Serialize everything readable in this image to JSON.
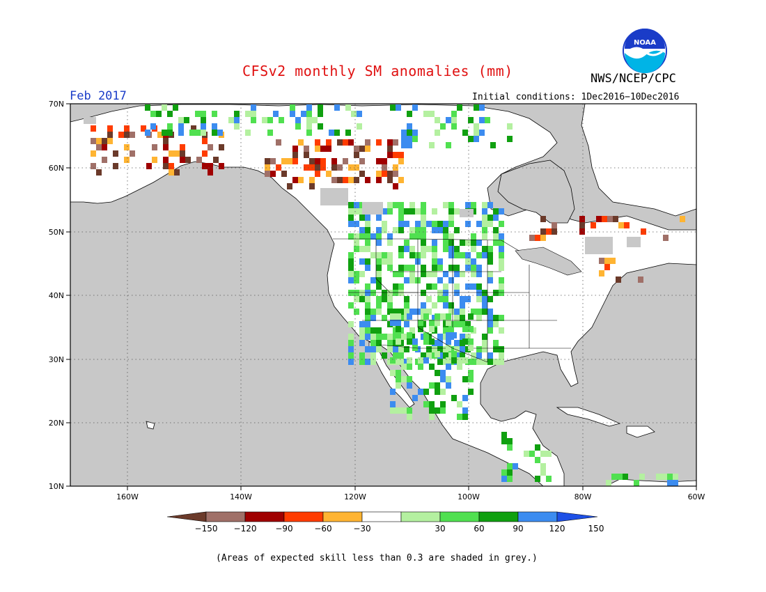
{
  "title": "CFSv2 monthly SM anomalies (mm)",
  "org": "NWS/NCEP/CPC",
  "logo_text": "NOAA",
  "month": "Feb 2017",
  "initial_conditions": "Initial conditions: 1Dec2016−10Dec2016",
  "footnote": "(Areas of expected skill less than 0.3 are shaded in grey.)",
  "lat_labels": [
    "70N",
    "60N",
    "50N",
    "40N",
    "30N",
    "20N",
    "10N"
  ],
  "lon_labels": [
    "160W",
    "140W",
    "120W",
    "100W",
    "80W",
    "60W"
  ],
  "colorbar": {
    "ticks": [
      "−150",
      "−120",
      "−90",
      "−60",
      "−30",
      "30",
      "60",
      "90",
      "120",
      "150"
    ],
    "colors": [
      "#6b3a2a",
      "#a07068",
      "#a00000",
      "#ff3c00",
      "#ffb432",
      "#ffffff",
      "#b4f0a0",
      "#50e050",
      "#10a010",
      "#3c8cf0",
      "#1e50e6"
    ]
  },
  "colors": {
    "ocean": "#c8c8c8",
    "land": "#ffffff",
    "title": "#e01010",
    "month": "#1a3cc8"
  }
}
